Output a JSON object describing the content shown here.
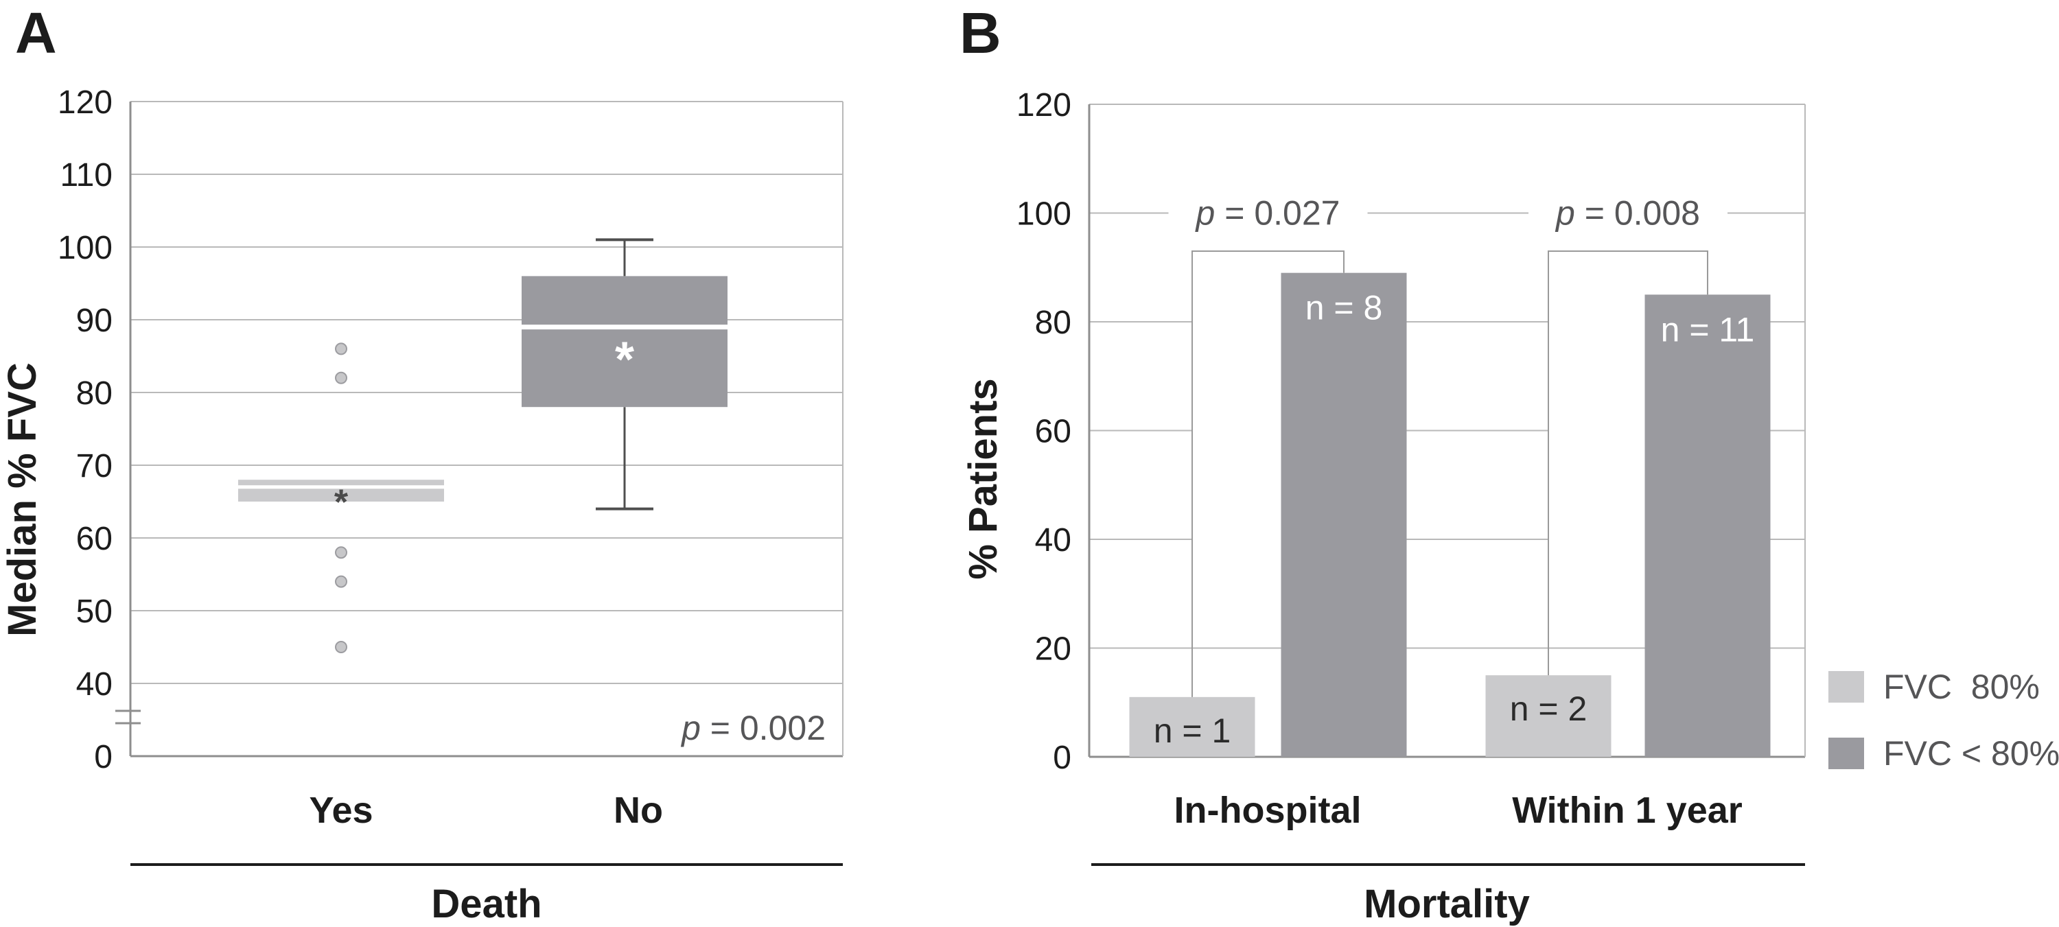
{
  "figure": {
    "panel_a": {
      "label": "A",
      "y_axis_title": "Median % FVC",
      "x_axis_title": "Death",
      "categories": [
        "Yes",
        "No"
      ],
      "p_value": "p = 0.002"
    },
    "panel_b": {
      "label": "B",
      "y_axis_title": "% Patients",
      "x_axis_title": "Mortality",
      "categories": [
        "In-hospital",
        "Within 1 year"
      ],
      "legend": [
        {
          "label": "FVC  80%",
          "color": "#cacacc"
        },
        {
          "label": "FVC < 80%",
          "color": "#9a9a9f"
        }
      ]
    }
  },
  "chart_data": [
    {
      "type": "box",
      "panel": "A",
      "ylabel": "Median % FVC",
      "xlabel": "Death",
      "ylim": [
        0,
        120
      ],
      "yticks": [
        0,
        40,
        50,
        60,
        70,
        80,
        90,
        100,
        110,
        120
      ],
      "axis_break_between": [
        0,
        40
      ],
      "grid": true,
      "groups": [
        {
          "category": "Yes",
          "q1": 65,
          "median": 67,
          "q3": 68,
          "mean_star": 66,
          "whisker_low": null,
          "whisker_high": null,
          "outliers": [
            86,
            82,
            58,
            54,
            45
          ],
          "box_color": "#cacacc",
          "mean_color": "#4a4a4a"
        },
        {
          "category": "No",
          "q1": 78,
          "median": 89,
          "q3": 96,
          "mean_star": 86,
          "whisker_low": 64,
          "whisker_high": 101,
          "outliers": [],
          "box_color": "#9a9a9f",
          "mean_color": "#ffffff"
        }
      ],
      "annotation": "p = 0.002"
    },
    {
      "type": "bar",
      "panel": "B",
      "ylabel": "% Patients",
      "xlabel": "Mortality",
      "ylim": [
        0,
        120
      ],
      "yticks": [
        0,
        20,
        40,
        60,
        80,
        100,
        120
      ],
      "grid": true,
      "categories": [
        "In-hospital",
        "Within 1 year"
      ],
      "series": [
        {
          "name": "FVC  80%",
          "color": "#cacacc",
          "values": [
            11,
            15
          ],
          "bar_labels": [
            "n = 1",
            "n = 2"
          ],
          "label_color": "#2b2b2b"
        },
        {
          "name": "FVC < 80%",
          "color": "#9a9a9f",
          "values": [
            89,
            85
          ],
          "bar_labels": [
            "n = 8",
            "n = 11"
          ],
          "label_color": "#ffffff"
        }
      ],
      "comparisons": [
        {
          "category": "In-hospital",
          "label": "p = 0.027",
          "bracket_top": 93
        },
        {
          "category": "Within 1 year",
          "label": "p = 0.008",
          "bracket_top": 93
        }
      ]
    }
  ],
  "colors": {
    "light_gray_fill": "#cacacc",
    "dark_gray_fill": "#9a9a9f",
    "gridline": "#b9b9b9",
    "axis": "#8e8e8e",
    "stat_text": "#565658",
    "whisker": "#4f4f4f",
    "outlier_fill": "#c7c7c9",
    "outlier_stroke": "#9c9ca0",
    "black_text": "#1c1c1c"
  }
}
